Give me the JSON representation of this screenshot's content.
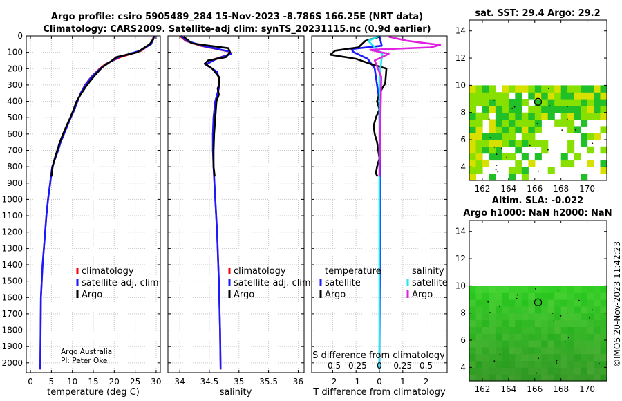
{
  "title": {
    "line1": "Argo profile: csiro 5905489_284 15-Nov-2023 -8.786S 166.25E (NRT data)",
    "line2": "Climatology: CARS2009. Satellite-adj clim: synTS_20231115.nc (0.9d earlier)"
  },
  "colors": {
    "climatology": "#ff0000",
    "satellite": "#1a1aff",
    "argo": "#000000",
    "sat_salinity": "#22e6f0",
    "argo_salinity": "#e020e0",
    "map_high": "#22c028",
    "map_mid": "#88e000",
    "map_low": "#d8e000"
  },
  "attribution": {
    "org": "Argo Australia",
    "pi": "PI: Peter Oke"
  },
  "stamp": "©IMOS 20-Nov-2023 11:42:23",
  "chart_data": [
    {
      "id": "temperature",
      "type": "line",
      "xlabel": "temperature (deg C)",
      "ylabel": "",
      "xlim": [
        -1,
        31
      ],
      "ylim": [
        2060,
        0
      ],
      "xticks": [
        0,
        5,
        10,
        15,
        20,
        25,
        30
      ],
      "xticklabels": [
        "0",
        "5",
        "10",
        "15",
        "20",
        "25",
        "30"
      ],
      "yticks": [
        0,
        100,
        200,
        300,
        400,
        500,
        600,
        700,
        800,
        900,
        1000,
        1100,
        1200,
        1300,
        1400,
        1500,
        1600,
        1700,
        1800,
        1900,
        2000
      ],
      "yticklabels": [
        "0",
        "100",
        "200",
        "300",
        "400",
        "500",
        "600",
        "700",
        "800",
        "900",
        "1000",
        "1100",
        "1200",
        "1300",
        "1400",
        "1500",
        "1600",
        "1700",
        "1800",
        "1900",
        "2000"
      ],
      "legend": [
        "climatology",
        "satellite-adj. clim",
        "Argo"
      ],
      "series": [
        {
          "name": "climatology",
          "color": "#ff0000",
          "x": [
            29.5,
            29.2,
            28.6,
            26.5,
            21.5,
            18.0,
            16.5,
            14.5,
            13.0,
            12.0,
            11.2,
            10.5,
            9.6,
            8.8,
            8.0,
            7.2,
            6.6,
            5.9,
            5.2,
            4.7,
            4.2,
            3.8,
            3.5,
            3.2,
            2.9,
            2.7,
            2.5,
            2.35
          ],
          "depth": [
            0,
            20,
            50,
            90,
            130,
            170,
            200,
            250,
            300,
            350,
            400,
            450,
            500,
            550,
            600,
            650,
            700,
            750,
            800,
            900,
            1000,
            1100,
            1200,
            1300,
            1400,
            1500,
            1600,
            2040
          ]
        },
        {
          "name": "satellite-adj. clim",
          "color": "#1a1aff",
          "x": [
            29.6,
            29.3,
            28.8,
            26.2,
            21.0,
            18.2,
            16.7,
            14.6,
            13.1,
            12.0,
            11.2,
            10.5,
            9.6,
            8.8,
            8.0,
            7.2,
            6.6,
            5.9,
            5.2,
            4.7,
            4.2,
            3.8,
            3.5,
            3.2,
            2.9,
            2.7,
            2.5,
            2.35
          ],
          "depth": [
            0,
            20,
            50,
            90,
            130,
            170,
            200,
            250,
            300,
            350,
            400,
            450,
            500,
            550,
            600,
            650,
            700,
            750,
            800,
            900,
            1000,
            1100,
            1200,
            1300,
            1400,
            1500,
            1600,
            2040
          ]
        },
        {
          "name": "Argo",
          "color": "#000000",
          "x": [
            29.4,
            29.3,
            28.5,
            25.5,
            20.5,
            19.5,
            17.2,
            15.4,
            13.5,
            12.2,
            11.0,
            10.3,
            9.5,
            8.6,
            7.8,
            7.0,
            6.4,
            5.8,
            5.3,
            5.0
          ],
          "depth": [
            5,
            20,
            50,
            100,
            130,
            150,
            190,
            240,
            300,
            350,
            400,
            450,
            500,
            550,
            600,
            650,
            700,
            750,
            800,
            860
          ]
        }
      ]
    },
    {
      "id": "salinity",
      "type": "line",
      "xlabel": "salinity",
      "ylabel": "",
      "xlim": [
        33.8,
        36.1
      ],
      "ylim": [
        2060,
        0
      ],
      "xticks": [
        34,
        34.5,
        35,
        35.5,
        36
      ],
      "xticklabels": [
        "34",
        "34.5",
        "35",
        "35.5",
        "36"
      ],
      "legend": [
        "climatology",
        "satellite-adj. clim",
        "Argo"
      ],
      "series": [
        {
          "name": "climatology",
          "color": "#ff0000",
          "x": [
            34.0,
            34.1,
            34.35,
            34.82,
            34.86,
            34.6,
            34.45,
            34.62,
            34.67,
            34.66,
            34.6,
            34.57,
            34.56,
            34.56,
            34.57,
            34.6,
            34.63,
            34.66,
            34.68,
            34.69
          ],
          "depth": [
            0,
            30,
            60,
            95,
            110,
            140,
            175,
            220,
            270,
            320,
            400,
            500,
            600,
            700,
            800,
            1000,
            1200,
            1500,
            1800,
            2040
          ]
        },
        {
          "name": "satellite-adj. clim",
          "color": "#1a1aff",
          "x": [
            34.02,
            34.12,
            34.38,
            34.84,
            34.87,
            34.62,
            34.44,
            34.63,
            34.67,
            34.66,
            34.6,
            34.57,
            34.56,
            34.56,
            34.57,
            34.6,
            34.63,
            34.66,
            34.68,
            34.69
          ],
          "depth": [
            0,
            30,
            60,
            95,
            110,
            140,
            175,
            220,
            270,
            320,
            400,
            500,
            600,
            700,
            800,
            1000,
            1200,
            1500,
            1800,
            2040
          ]
        },
        {
          "name": "Argo",
          "color": "#000000",
          "x": [
            34.06,
            34.12,
            34.2,
            34.5,
            34.82,
            34.85,
            34.78,
            34.48,
            34.42,
            34.55,
            34.66,
            34.67,
            34.64,
            34.66,
            34.62,
            34.6,
            34.58,
            34.57,
            34.57,
            34.59
          ],
          "depth": [
            5,
            20,
            45,
            60,
            75,
            100,
            130,
            150,
            170,
            200,
            250,
            300,
            320,
            360,
            400,
            500,
            600,
            700,
            800,
            860
          ]
        }
      ]
    },
    {
      "id": "difference",
      "type": "line",
      "xlabel": "T difference from climatology",
      "xlabel_top": "S difference from climatology",
      "xlim": [
        -2.9,
        2.9
      ],
      "ylim": [
        2060,
        0
      ],
      "xticks": [
        -2,
        -1,
        0,
        1,
        2
      ],
      "xticklabels": [
        "-2",
        "-1",
        "0",
        "1",
        "2"
      ],
      "sticks": [
        -0.5,
        -0.25,
        0,
        0.25,
        0.5
      ],
      "sticklabels": [
        "-0.5",
        "-0.25",
        "0",
        "0.25",
        "0.5"
      ],
      "legend_temperature_title": "temperature",
      "legend_salinity_title": "salinity",
      "legend": [
        "satellite",
        "Argo",
        "satellite",
        "Argo"
      ],
      "series": [
        {
          "name": "temperature satellite",
          "color": "#1a1aff",
          "x": [
            0,
            0.1,
            -1.2,
            -1.1,
            -0.5,
            -0.2,
            -0.1,
            0,
            0,
            0.05,
            0
          ],
          "depth": [
            0,
            60,
            80,
            100,
            140,
            200,
            300,
            400,
            500,
            700,
            2040
          ]
        },
        {
          "name": "temperature Argo",
          "color": "#000000",
          "x": [
            0,
            -0.6,
            -0.9,
            -1.9,
            -2.1,
            -1.0,
            -0.4,
            0.3,
            0.25,
            0,
            -0.1,
            0,
            -0.15,
            -0.25,
            -0.2,
            -0.1,
            -0.05,
            0,
            -0.1,
            -0.15,
            -0.08
          ],
          "depth": [
            5,
            30,
            70,
            90,
            115,
            140,
            170,
            200,
            290,
            350,
            400,
            450,
            500,
            550,
            600,
            650,
            700,
            750,
            800,
            840,
            860
          ]
        },
        {
          "name": "salinity satellite",
          "color": "#22e6f0",
          "x": [
            0,
            -0.12,
            -0.05,
            0.03,
            0.02,
            0,
            0,
            0
          ],
          "depth": [
            0,
            30,
            70,
            110,
            160,
            250,
            500,
            2040
          ]
        },
        {
          "name": "salinity Argo",
          "color": "#e020e0",
          "x": [
            0.1,
            0.3,
            0.5,
            0.65,
            0.55,
            -0.1,
            0.1,
            -0.05,
            0.02,
            0
          ],
          "depth": [
            5,
            30,
            45,
            55,
            70,
            85,
            110,
            150,
            250,
            860
          ]
        }
      ]
    },
    {
      "id": "sst_map",
      "type": "heatmap",
      "title": "sat. SST: 29.4 Argo: 29.2",
      "xlim": [
        161,
        171.5
      ],
      "ylim": [
        3,
        14.8
      ],
      "xticks": [
        162,
        164,
        166,
        168,
        170
      ],
      "xticklabels": [
        "162",
        "164",
        "166",
        "168",
        "170"
      ],
      "yticks": [
        4,
        6,
        8,
        10,
        12,
        14
      ],
      "yticklabels": [
        "4",
        "6",
        "8",
        "10",
        "12",
        "14"
      ],
      "data_extent_lat_max": 10,
      "argo_position": {
        "lon": 166.25,
        "lat": 8.786
      }
    },
    {
      "id": "sla_map",
      "type": "heatmap",
      "title": "Altim. SLA: -0.022",
      "title2": "Argo h1000: NaN h2000: NaN",
      "xlim": [
        161,
        171.5
      ],
      "ylim": [
        3,
        14.8
      ],
      "xticks": [
        162,
        164,
        166,
        168,
        170
      ],
      "xticklabels": [
        "162",
        "164",
        "166",
        "168",
        "170"
      ],
      "yticks": [
        4,
        6,
        8,
        10,
        12,
        14
      ],
      "yticklabels": [
        "4",
        "6",
        "8",
        "10",
        "12",
        "14"
      ],
      "data_extent_lat_max": 10,
      "argo_position": {
        "lon": 166.25,
        "lat": 8.786
      }
    }
  ]
}
